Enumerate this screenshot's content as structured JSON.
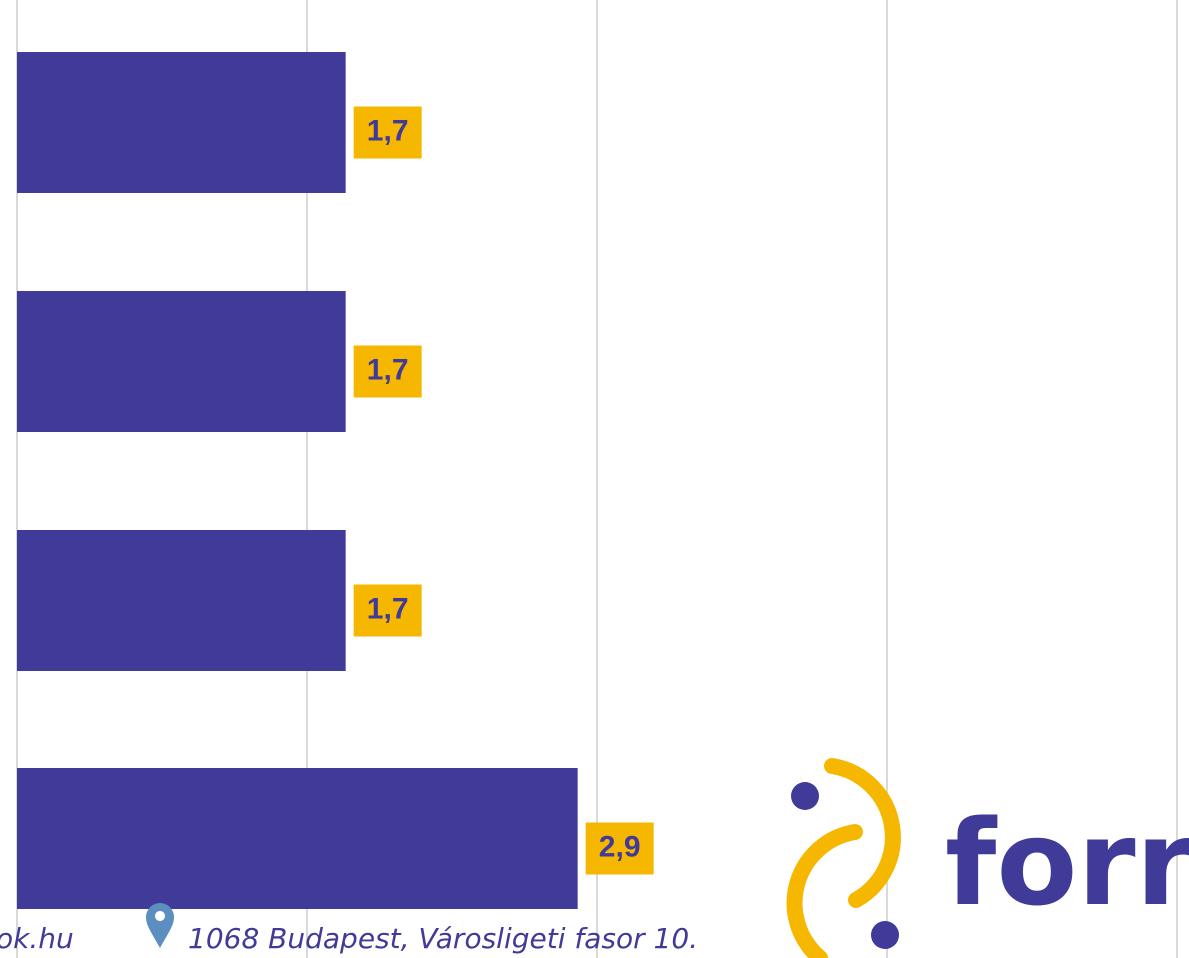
{
  "chart_data": {
    "type": "bar",
    "orientation": "horizontal",
    "categories": [
      null,
      null,
      null,
      null
    ],
    "values": [
      1.7,
      1.7,
      1.7,
      2.9
    ],
    "value_labels": [
      "1,7",
      "1,7",
      "1,7",
      "2,9"
    ],
    "color": "#403a98",
    "label_color": "#f5b700",
    "xlim": [
      0,
      6
    ],
    "xticks": [
      0,
      1.5,
      3,
      4.5,
      6
    ],
    "grid": true
  },
  "footer": {
    "website": "ok.hu",
    "address": "1068 Budapest, Városligeti fasor 10.",
    "logo": "forrá"
  }
}
